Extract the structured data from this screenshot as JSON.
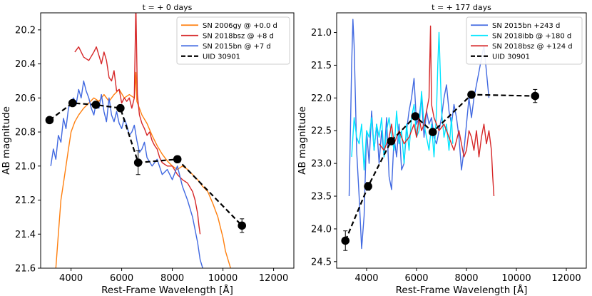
{
  "chart_data": [
    {
      "type": "line",
      "title": "t = + 0 days",
      "xlabel": "Rest-Frame Wavelength [Å]",
      "ylabel": "AB magnitude",
      "xlim": [
        2800,
        12800
      ],
      "ylim": [
        21.6,
        20.1
      ],
      "y_inverted": true,
      "grid": false,
      "legend_position": "top-right",
      "xticks": [
        4000,
        6000,
        8000,
        10000,
        12000
      ],
      "xtick_labels": [
        "4000",
        "6000",
        "8000",
        "10000",
        "12000"
      ],
      "yticks": [
        20.2,
        20.4,
        20.6,
        20.8,
        21.0,
        21.2,
        21.4,
        21.6
      ],
      "ytick_labels": [
        "20.2",
        "20.4",
        "20.6",
        "20.8",
        "21.0",
        "21.2",
        "21.4",
        "21.6"
      ],
      "series": [
        {
          "name": "SN 2006gy @ +0.0 d",
          "kind": "spectrum",
          "color": "#ff7f0e",
          "x": [
            3400,
            3500,
            3600,
            3700,
            3800,
            3900,
            4000,
            4150,
            4300,
            4500,
            4700,
            4900,
            5100,
            5300,
            5500,
            5700,
            5900,
            6100,
            6300,
            6500,
            6560,
            6600,
            6800,
            7000,
            7200,
            7400,
            7600,
            7800,
            8000,
            8200,
            8400,
            8600,
            8800,
            9000,
            9200,
            9400,
            9600,
            9800,
            9900,
            10000,
            10100,
            10200,
            10300
          ],
          "y": [
            21.6,
            21.4,
            21.2,
            21.1,
            21.0,
            20.9,
            20.8,
            20.74,
            20.7,
            20.66,
            20.63,
            20.6,
            20.62,
            20.58,
            20.62,
            20.58,
            20.55,
            20.6,
            20.58,
            20.6,
            20.45,
            20.62,
            20.7,
            20.75,
            20.82,
            20.88,
            20.93,
            20.97,
            21.0,
            21.02,
            21.0,
            21.02,
            21.05,
            21.08,
            21.12,
            21.15,
            21.22,
            21.3,
            21.36,
            21.42,
            21.5,
            21.55,
            21.6
          ]
        },
        {
          "name": "SN 2018bsz @ +8 d",
          "kind": "spectrum",
          "color": "#d62728",
          "x": [
            4150,
            4300,
            4500,
            4700,
            4900,
            5000,
            5100,
            5200,
            5300,
            5400,
            5500,
            5600,
            5700,
            5800,
            5900,
            6000,
            6100,
            6200,
            6300,
            6400,
            6500,
            6560,
            6620,
            6700,
            6800,
            6900,
            7000,
            7100,
            7200,
            7300,
            7400,
            7500,
            7600,
            7800,
            8000,
            8200,
            8400,
            8600,
            8800,
            8900,
            9000,
            9050,
            9100
          ],
          "y": [
            20.33,
            20.3,
            20.36,
            20.38,
            20.33,
            20.3,
            20.35,
            20.4,
            20.33,
            20.38,
            20.48,
            20.5,
            20.44,
            20.56,
            20.55,
            20.63,
            20.6,
            20.62,
            20.6,
            20.66,
            20.6,
            20.05,
            20.58,
            20.7,
            20.75,
            20.78,
            20.82,
            20.8,
            20.85,
            20.88,
            20.9,
            20.95,
            20.98,
            21.0,
            21.0,
            21.05,
            21.08,
            21.1,
            21.15,
            21.2,
            21.28,
            21.35,
            21.4
          ]
        },
        {
          "name": "SN 2015bn @ +7 d",
          "kind": "spectrum",
          "color": "#4169e1",
          "x": [
            3200,
            3300,
            3400,
            3500,
            3600,
            3700,
            3800,
            3900,
            4000,
            4100,
            4200,
            4300,
            4400,
            4500,
            4600,
            4700,
            4800,
            4900,
            5000,
            5100,
            5200,
            5300,
            5400,
            5500,
            5600,
            5700,
            5800,
            5900,
            6000,
            6100,
            6200,
            6300,
            6400,
            6500,
            6600,
            6700,
            6800,
            6900,
            7000,
            7200,
            7400,
            7600,
            7800,
            8000,
            8200,
            8400,
            8600,
            8800,
            9000,
            9100,
            9200
          ],
          "y": [
            21.0,
            20.9,
            20.96,
            20.82,
            20.86,
            20.72,
            20.78,
            20.66,
            20.62,
            20.6,
            20.64,
            20.55,
            20.6,
            20.5,
            20.56,
            20.6,
            20.66,
            20.7,
            20.62,
            20.66,
            20.58,
            20.68,
            20.74,
            20.6,
            20.7,
            20.74,
            20.68,
            20.75,
            20.78,
            20.72,
            20.76,
            20.82,
            20.8,
            20.76,
            20.85,
            20.92,
            20.9,
            20.86,
            20.95,
            21.0,
            20.96,
            21.05,
            21.02,
            21.08,
            21.0,
            21.12,
            21.2,
            21.3,
            21.45,
            21.55,
            21.6
          ]
        },
        {
          "name": "UID 30901",
          "kind": "photometry",
          "color": "#000000",
          "linestyle": "dashed",
          "x": [
            3150,
            4060,
            4980,
            5950,
            6650,
            8200,
            10750
          ],
          "y": [
            20.73,
            20.63,
            20.64,
            20.66,
            20.98,
            20.96,
            21.35
          ],
          "yerr": [
            0.01,
            0.01,
            0.01,
            0.02,
            0.07,
            0.02,
            0.04
          ]
        }
      ]
    },
    {
      "type": "line",
      "title": "t = + 177 days",
      "xlabel": "Rest-Frame Wavelength [Å]",
      "ylabel": "AB magnitude",
      "xlim": [
        2800,
        12800
      ],
      "ylim": [
        24.6,
        20.7
      ],
      "y_inverted": true,
      "grid": false,
      "legend_position": "top-right",
      "xticks": [
        4000,
        6000,
        8000,
        10000,
        12000
      ],
      "xtick_labels": [
        "4000",
        "6000",
        "8000",
        "10000",
        "12000"
      ],
      "yticks": [
        21.0,
        21.5,
        22.0,
        22.5,
        23.0,
        23.5,
        24.0,
        24.5
      ],
      "ytick_labels": [
        "21.0",
        "21.5",
        "22.0",
        "22.5",
        "23.0",
        "23.5",
        "24.0",
        "24.5"
      ],
      "series": [
        {
          "name": "SN 2015bn +243 d",
          "kind": "spectrum",
          "color": "#4169e1",
          "x": [
            3300,
            3350,
            3400,
            3450,
            3500,
            3550,
            3600,
            3700,
            3800,
            3900,
            4000,
            4100,
            4200,
            4300,
            4400,
            4500,
            4600,
            4700,
            4800,
            4900,
            5000,
            5100,
            5200,
            5300,
            5400,
            5500,
            5600,
            5700,
            5800,
            5900,
            6000,
            6100,
            6200,
            6300,
            6400,
            6500,
            6600,
            6700,
            6800,
            6900,
            7000,
            7100,
            7200,
            7300,
            7400,
            7500,
            7600,
            7700,
            7800,
            7900,
            8000,
            8100,
            8200,
            8300,
            8400,
            8500,
            8600,
            8700,
            8800,
            8900
          ],
          "y": [
            23.5,
            22.5,
            21.5,
            20.8,
            21.2,
            22.0,
            22.8,
            23.5,
            24.3,
            23.8,
            22.5,
            23.0,
            22.2,
            22.8,
            22.4,
            23.0,
            22.5,
            22.9,
            22.3,
            23.2,
            23.4,
            22.6,
            22.9,
            22.4,
            23.1,
            23.0,
            22.5,
            22.2,
            22.0,
            21.7,
            22.4,
            22.3,
            22.0,
            22.6,
            22.2,
            22.4,
            22.3,
            22.6,
            22.7,
            22.5,
            22.3,
            22.0,
            21.8,
            22.2,
            22.4,
            22.1,
            22.3,
            22.6,
            23.1,
            22.8,
            22.4,
            22.0,
            22.3,
            22.0,
            21.8,
            21.6,
            21.4,
            21.2,
            21.6,
            22.0
          ]
        },
        {
          "name": "SN 2018ibb @ +180 d",
          "kind": "spectrum",
          "color": "#00e5ff",
          "x": [
            3400,
            3500,
            3600,
            3700,
            3800,
            3900,
            4000,
            4100,
            4200,
            4300,
            4400,
            4500,
            4600,
            4700,
            4800,
            4900,
            5000,
            5100,
            5200,
            5300,
            5400,
            5500,
            5600,
            5700,
            5800,
            5900,
            6000,
            6100,
            6200,
            6300,
            6400,
            6500,
            6600,
            6700,
            6800,
            6850,
            6900,
            7000,
            7100,
            7200,
            7300,
            7400,
            7450
          ],
          "y": [
            22.9,
            22.3,
            22.6,
            22.7,
            22.4,
            23.1,
            22.5,
            22.6,
            22.3,
            22.8,
            22.4,
            22.6,
            22.3,
            22.9,
            22.5,
            22.3,
            22.6,
            22.8,
            22.2,
            22.7,
            22.5,
            23.0,
            22.4,
            22.8,
            22.3,
            22.1,
            22.6,
            22.5,
            21.9,
            22.4,
            22.6,
            22.8,
            22.4,
            22.9,
            22.2,
            21.5,
            21.0,
            22.2,
            22.6,
            22.4,
            22.8,
            22.3,
            22.7
          ]
        },
        {
          "name": "SN 2018bsz @ +124 d",
          "kind": "spectrum",
          "color": "#d62728",
          "x": [
            4500,
            4700,
            4900,
            5000,
            5100,
            5300,
            5500,
            5700,
            5900,
            6000,
            6100,
            6200,
            6300,
            6400,
            6500,
            6560,
            6600,
            6700,
            6900,
            7100,
            7300,
            7500,
            7700,
            7800,
            7900,
            8000,
            8100,
            8200,
            8300,
            8400,
            8500,
            8600,
            8700,
            8800,
            8900,
            9000,
            9050,
            9100
          ],
          "y": [
            22.7,
            22.8,
            22.6,
            22.4,
            22.7,
            22.5,
            22.7,
            22.6,
            22.4,
            22.6,
            22.3,
            22.5,
            22.4,
            22.2,
            22.0,
            20.9,
            22.1,
            22.3,
            22.5,
            22.4,
            22.6,
            22.8,
            22.5,
            22.7,
            22.9,
            22.8,
            22.5,
            22.6,
            22.8,
            22.5,
            22.9,
            22.6,
            22.4,
            22.7,
            22.5,
            22.8,
            23.2,
            23.5
          ]
        },
        {
          "name": "UID 30901",
          "kind": "photometry",
          "color": "#000000",
          "linestyle": "dashed",
          "x": [
            3150,
            4060,
            4980,
            5950,
            6650,
            8200,
            10750
          ],
          "y": [
            24.18,
            23.35,
            22.66,
            22.28,
            22.52,
            21.95,
            21.97
          ],
          "yerr": [
            0.15,
            0.06,
            0.04,
            0.04,
            0.05,
            0.04,
            0.1
          ]
        }
      ]
    }
  ]
}
